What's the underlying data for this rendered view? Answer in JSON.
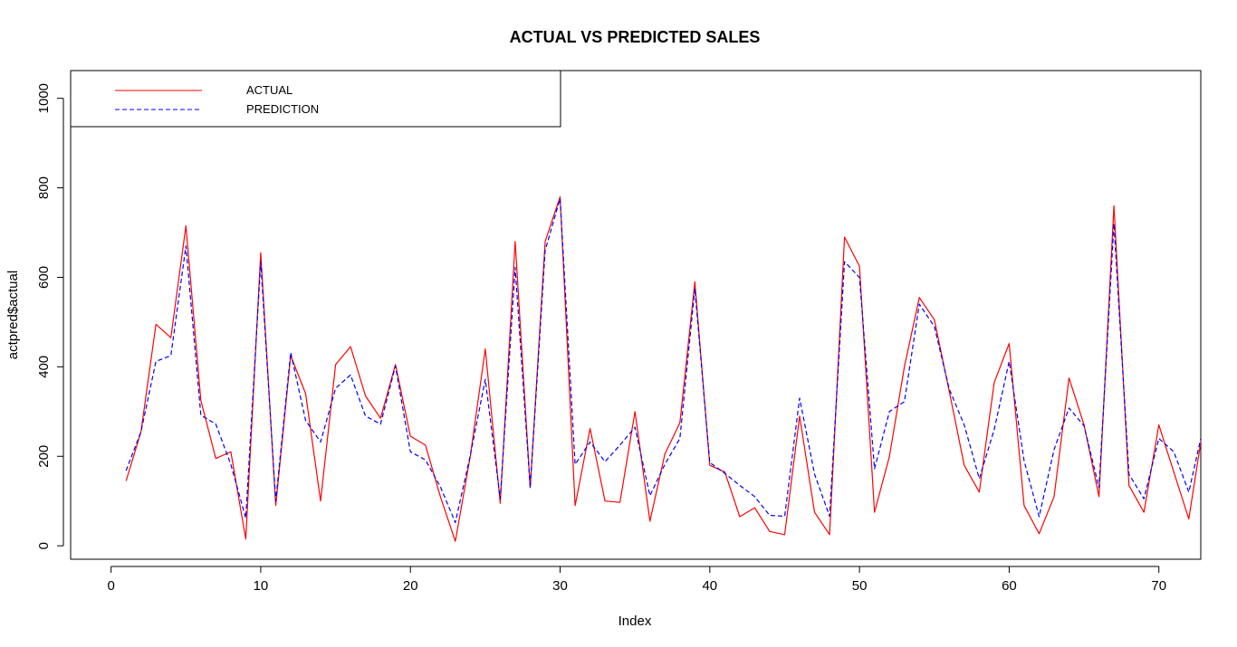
{
  "chart_data": {
    "type": "line",
    "title": "ACTUAL VS PREDICTED SALES",
    "xlabel": "Index",
    "ylabel": "actpred$actual",
    "xlim": [
      -2.7,
      72.8
    ],
    "ylim": [
      -30,
      1062
    ],
    "x_ticks": [
      0,
      10,
      20,
      30,
      40,
      50,
      60,
      70
    ],
    "y_ticks": [
      0,
      200,
      400,
      600,
      800,
      1000
    ],
    "grid": false,
    "legend_position": "top-left",
    "legend": [
      {
        "label": "ACTUAL",
        "color": "#ff0000",
        "dash": "solid"
      },
      {
        "label": "PREDICTION",
        "color": "#0000ff",
        "dash": "dashed"
      }
    ],
    "series": [
      {
        "name": "ACTUAL",
        "color": "#ff0000",
        "dash": "solid",
        "x": [
          1,
          2,
          3,
          4,
          5,
          6,
          7,
          8,
          9,
          10,
          11,
          12,
          13,
          14,
          15,
          16,
          17,
          18,
          19,
          20,
          21,
          22,
          23,
          24,
          25,
          26,
          27,
          28,
          29,
          30,
          31,
          32,
          33,
          34,
          35,
          36,
          37,
          38,
          39,
          40,
          41,
          42,
          43,
          44,
          45,
          46,
          47,
          48,
          49,
          50,
          51,
          52,
          53,
          54,
          55,
          56,
          57,
          58,
          59,
          60,
          61,
          62,
          63,
          64,
          65,
          66,
          67,
          68,
          69,
          70,
          71,
          72,
          73
        ],
        "values": [
          145,
          255,
          495,
          465,
          715,
          325,
          195,
          210,
          15,
          655,
          90,
          425,
          340,
          100,
          405,
          445,
          335,
          285,
          405,
          245,
          225,
          110,
          10,
          200,
          440,
          95,
          680,
          130,
          680,
          780,
          90,
          262,
          100,
          97,
          300,
          55,
          205,
          275,
          590,
          180,
          165,
          65,
          85,
          32,
          25,
          290,
          75,
          25,
          690,
          625,
          75,
          200,
          400,
          555,
          505,
          345,
          180,
          120,
          365,
          452,
          90,
          27,
          110,
          375,
          270,
          110,
          760,
          135,
          75,
          270,
          165,
          60,
          275
        ]
      },
      {
        "name": "PREDICTION",
        "color": "#0000ff",
        "dash": "dashed",
        "x": [
          1,
          2,
          3,
          4,
          5,
          6,
          7,
          8,
          9,
          10,
          11,
          12,
          13,
          14,
          15,
          16,
          17,
          18,
          19,
          20,
          21,
          22,
          23,
          24,
          25,
          26,
          27,
          28,
          29,
          30,
          31,
          32,
          33,
          34,
          35,
          36,
          37,
          38,
          39,
          40,
          41,
          42,
          43,
          44,
          45,
          46,
          47,
          48,
          49,
          50,
          51,
          52,
          53,
          54,
          55,
          56,
          57,
          58,
          59,
          60,
          61,
          62,
          63,
          64,
          65,
          66,
          67,
          68,
          69,
          70,
          71,
          72,
          73
        ],
        "values": [
          168,
          255,
          412,
          425,
          670,
          292,
          272,
          182,
          62,
          635,
          100,
          432,
          280,
          232,
          352,
          382,
          290,
          272,
          402,
          210,
          192,
          132,
          52,
          202,
          372,
          105,
          622,
          130,
          660,
          776,
          182,
          232,
          188,
          225,
          265,
          112,
          182,
          240,
          575,
          186,
          162,
          135,
          110,
          68,
          66,
          330,
          160,
          66,
          635,
          600,
          172,
          300,
          322,
          540,
          490,
          350,
          270,
          150,
          260,
          412,
          190,
          65,
          215,
          308,
          268,
          130,
          720,
          160,
          105,
          240,
          210,
          120,
          270
        ]
      }
    ]
  }
}
